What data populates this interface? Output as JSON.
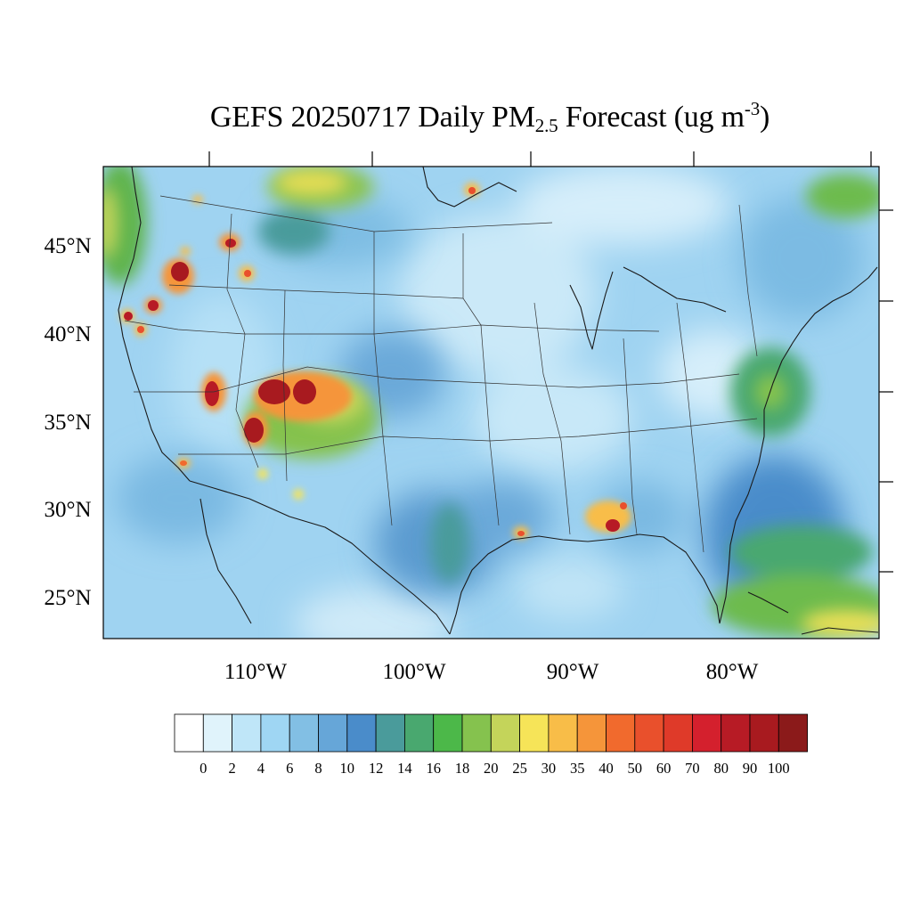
{
  "title": {
    "prefix": "GEFS 20250717 Daily PM",
    "sub": "2.5",
    "mid": " Forecast (ug m",
    "sup": "-3",
    "suffix": ")"
  },
  "map": {
    "lat_labels": [
      "45°N",
      "40°N",
      "35°N",
      "30°N",
      "25°N"
    ],
    "lon_labels": [
      "110°W",
      "100°W",
      "90°W",
      "80°W"
    ],
    "colors": {
      "background": "#9fd3f1",
      "land_dominant": "#a8daf3",
      "coast_line": "#1a1a1a",
      "state_line": "#333333"
    }
  },
  "colorbar": {
    "labels": [
      "0",
      "2",
      "4",
      "6",
      "8",
      "10",
      "12",
      "14",
      "16",
      "18",
      "20",
      "25",
      "30",
      "35",
      "40",
      "50",
      "60",
      "70",
      "80",
      "90",
      "100"
    ],
    "colors": [
      "#ffffff",
      "#e0f3fb",
      "#bfe6f8",
      "#9fd6f3",
      "#82bfe4",
      "#66a6d8",
      "#4a8cca",
      "#4a9b9b",
      "#49a86f",
      "#4cb849",
      "#85c24e",
      "#c4d45a",
      "#f6e458",
      "#f8bd48",
      "#f5953a",
      "#f16a2d",
      "#e9502c",
      "#df3a29",
      "#d4202d",
      "#b71b25",
      "#a81a1f",
      "#8b1a1a"
    ]
  },
  "plumes": [
    {
      "name": "idaho-north",
      "level": 90
    },
    {
      "name": "oregon-central",
      "level": 80
    },
    {
      "name": "california-north",
      "level": 70
    },
    {
      "name": "nevada-south",
      "level": 90
    },
    {
      "name": "four-corners-west",
      "level": 100
    },
    {
      "name": "four-corners-east",
      "level": 100
    },
    {
      "name": "arizona-north",
      "level": 100
    },
    {
      "name": "gulf-coast-alabama",
      "level": 90
    },
    {
      "name": "montana-west",
      "level": 70
    },
    {
      "name": "lake-superior-north",
      "level": 60
    },
    {
      "name": "louisiana-coast",
      "level": 40
    }
  ]
}
